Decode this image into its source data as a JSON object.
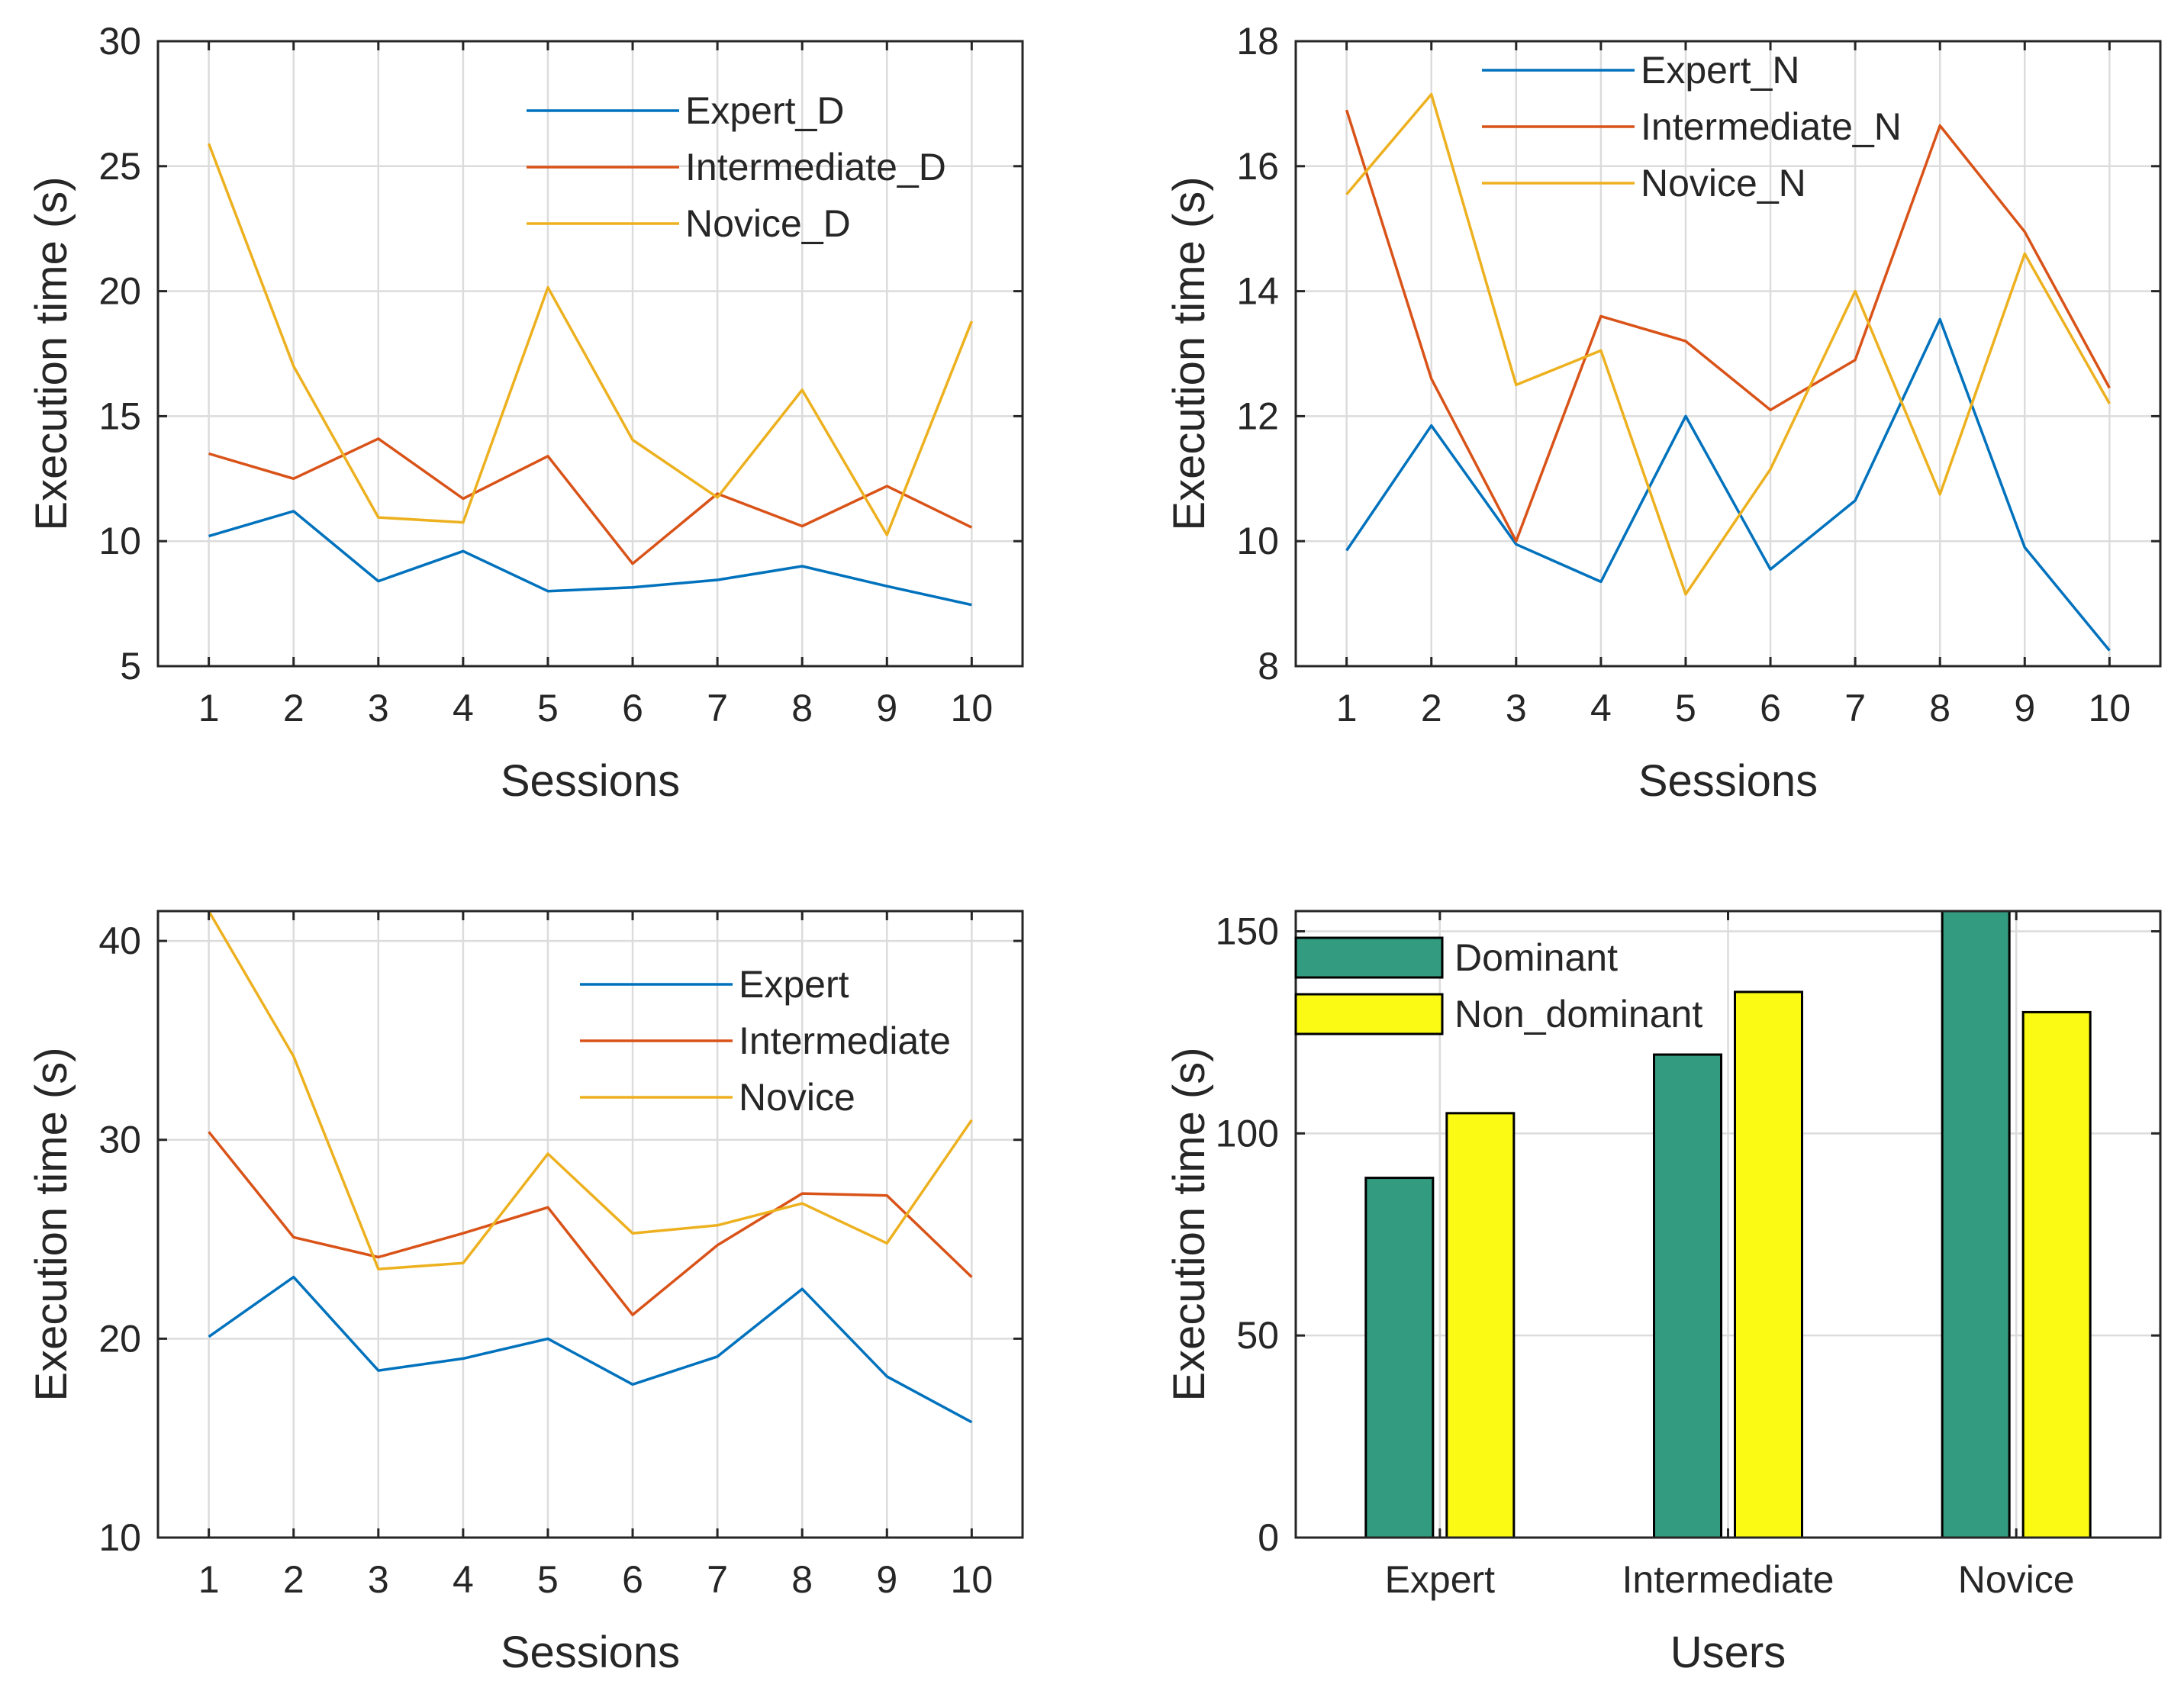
{
  "chart_data": [
    {
      "id": "top-left",
      "type": "line",
      "x": [
        1,
        2,
        3,
        4,
        5,
        6,
        7,
        8,
        9,
        10
      ],
      "xticks": [
        "1",
        "2",
        "3",
        "4",
        "5",
        "6",
        "7",
        "8",
        "9",
        "10"
      ],
      "xlim": [
        0.4,
        10.6
      ],
      "ylim": [
        5,
        30
      ],
      "yticks": [
        5,
        10,
        15,
        20,
        25,
        30
      ],
      "xlabel": "Sessions",
      "ylabel": "Execution time (s)",
      "grid": true,
      "legend_position": "top-right",
      "series": [
        {
          "name": "Expert_D",
          "color": "#0072BD",
          "values": [
            10.2,
            11.2,
            8.4,
            9.6,
            8.0,
            8.15,
            8.45,
            9.0,
            8.2,
            7.45
          ]
        },
        {
          "name": "Intermediate_D",
          "color": "#D95319",
          "values": [
            13.5,
            12.5,
            14.1,
            11.7,
            13.4,
            9.1,
            11.9,
            10.6,
            12.2,
            10.55
          ]
        },
        {
          "name": "Novice_D",
          "color": "#EDB120",
          "values": [
            25.9,
            17.0,
            10.95,
            10.75,
            20.15,
            14.05,
            11.75,
            16.05,
            10.25,
            18.8
          ]
        }
      ]
    },
    {
      "id": "top-right",
      "type": "line",
      "x": [
        1,
        2,
        3,
        4,
        5,
        6,
        7,
        8,
        9,
        10
      ],
      "xticks": [
        "1",
        "2",
        "3",
        "4",
        "5",
        "6",
        "7",
        "8",
        "9",
        "10"
      ],
      "xlim": [
        0.4,
        10.6
      ],
      "ylim": [
        8,
        18
      ],
      "yticks": [
        8,
        10,
        12,
        14,
        16,
        18
      ],
      "xlabel": "Sessions",
      "ylabel": "Execution time (s)",
      "grid": true,
      "legend_position": "top",
      "series": [
        {
          "name": "Expert_N",
          "color": "#0072BD",
          "values": [
            9.85,
            11.85,
            9.95,
            9.35,
            12.0,
            9.55,
            10.65,
            13.55,
            9.9,
            8.25
          ]
        },
        {
          "name": "Intermediate_N",
          "color": "#D95319",
          "values": [
            16.9,
            12.6,
            10.0,
            13.6,
            13.2,
            12.1,
            12.9,
            16.65,
            14.95,
            12.45
          ]
        },
        {
          "name": "Novice_N",
          "color": "#EDB120",
          "values": [
            15.55,
            17.15,
            12.5,
            13.05,
            9.15,
            11.15,
            14.0,
            10.75,
            14.6,
            12.2
          ]
        }
      ]
    },
    {
      "id": "bottom-left",
      "type": "line",
      "x": [
        1,
        2,
        3,
        4,
        5,
        6,
        7,
        8,
        9,
        10
      ],
      "xticks": [
        "1",
        "2",
        "3",
        "4",
        "5",
        "6",
        "7",
        "8",
        "9",
        "10"
      ],
      "xlim": [
        0.4,
        10.6
      ],
      "ylim": [
        10,
        41.5
      ],
      "yticks": [
        10,
        20,
        30,
        40
      ],
      "xlabel": "Sessions",
      "ylabel": "Execution time (s)",
      "grid": true,
      "legend_position": "top-right",
      "series": [
        {
          "name": "Expert",
          "color": "#0072BD",
          "values": [
            20.1,
            23.1,
            18.4,
            19.0,
            20.0,
            17.7,
            19.1,
            22.5,
            18.1,
            15.8
          ]
        },
        {
          "name": "Intermediate",
          "color": "#D95319",
          "values": [
            30.4,
            25.1,
            24.1,
            25.3,
            26.6,
            21.2,
            24.7,
            27.3,
            27.2,
            23.1
          ]
        },
        {
          "name": "Novice",
          "color": "#EDB120",
          "values": [
            41.5,
            34.2,
            23.5,
            23.8,
            29.3,
            25.3,
            25.7,
            26.8,
            24.8,
            31.0
          ]
        }
      ]
    },
    {
      "id": "bottom-right",
      "type": "bar",
      "categories": [
        "Expert",
        "Intermediate",
        "Novice"
      ],
      "ylim": [
        0,
        155
      ],
      "yticks": [
        0,
        50,
        100,
        150
      ],
      "xlabel": "Users",
      "ylabel": "Execution time (s)",
      "grid": true,
      "legend_position": "top-left",
      "series": [
        {
          "name": "Dominant",
          "color": "#329B80",
          "values": [
            89,
            119.5,
            155
          ]
        },
        {
          "name": "Non_dominant",
          "color": "#FAFA14",
          "values": [
            105,
            135,
            130
          ]
        }
      ]
    }
  ]
}
